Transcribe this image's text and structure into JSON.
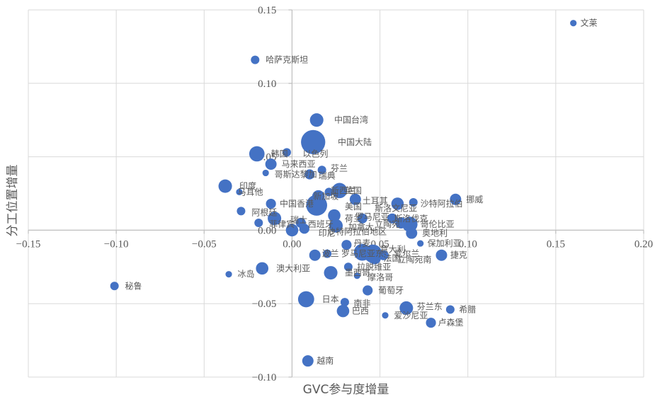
{
  "chart_data": {
    "type": "scatter",
    "xlabel": "GVC参与度增量",
    "ylabel": "分工位置增量",
    "xlim": [
      -0.15,
      0.2
    ],
    "ylim": [
      -0.1,
      0.15
    ],
    "xticks": [
      -0.15,
      -0.1,
      -0.05,
      0.0,
      0.05,
      0.1,
      0.15,
      0.2
    ],
    "yticks": [
      -0.1,
      -0.05,
      0.0,
      0.05,
      0.1,
      0.15
    ],
    "xtick_labels": [
      "−0.15",
      "−0.10",
      "−0.05",
      "0.00",
      "0.05",
      "0.10",
      "0.15",
      "0.20"
    ],
    "ytick_labels": [
      "−0.10",
      "−0.05",
      "0.00",
      "0.05",
      "0.10",
      "0.15"
    ],
    "grid": true,
    "points": [
      {
        "name": "文莱",
        "x": 0.16,
        "y": 0.141,
        "size": 1
      },
      {
        "name": "哈萨克斯坦",
        "x": -0.021,
        "y": 0.116,
        "size": 2
      },
      {
        "name": "中国台湾",
        "x": 0.014,
        "y": 0.075,
        "size": 6
      },
      {
        "name": "中国大陆",
        "x": 0.012,
        "y": 0.06,
        "size": 22
      },
      {
        "name": "韩国",
        "x": -0.02,
        "y": 0.052,
        "size": 8
      },
      {
        "name": "以色列",
        "x": -0.003,
        "y": 0.053,
        "size": 2
      },
      {
        "name": "马来西亚",
        "x": -0.012,
        "y": 0.045,
        "size": 4
      },
      {
        "name": "芬兰",
        "x": 0.017,
        "y": 0.041,
        "size": 2
      },
      {
        "name": "哥斯达黎加",
        "x": -0.015,
        "y": 0.039,
        "size": 1
      },
      {
        "name": "瑞典",
        "x": 0.01,
        "y": 0.038,
        "size": 3
      },
      {
        "name": "印度",
        "x": -0.038,
        "y": 0.03,
        "size": 6
      },
      {
        "name": "马耳他",
        "x": -0.03,
        "y": 0.026,
        "size": 1
      },
      {
        "name": "英国",
        "x": 0.027,
        "y": 0.027,
        "size": 8
      },
      {
        "name": "新加坡",
        "x": 0.021,
        "y": 0.026,
        "size": 2
      },
      {
        "name": "新西兰",
        "x": 0.015,
        "y": 0.023,
        "size": 5
      },
      {
        "name": "中国香港",
        "x": -0.012,
        "y": 0.018,
        "size": 3
      },
      {
        "name": "美国",
        "x": 0.014,
        "y": 0.017,
        "size": 16
      },
      {
        "name": "土耳其",
        "x": 0.036,
        "y": 0.021,
        "size": 4
      },
      {
        "name": "斯洛文尼亚",
        "x": 0.06,
        "y": 0.018,
        "size": 5
      },
      {
        "name": "沙特阿拉伯",
        "x": 0.069,
        "y": 0.019,
        "size": 2
      },
      {
        "name": "挪威",
        "x": 0.093,
        "y": 0.021,
        "size": 4
      },
      {
        "name": "阿根廷",
        "x": -0.029,
        "y": 0.013,
        "size": 2
      },
      {
        "name": "瑞士",
        "x": -0.01,
        "y": 0.008,
        "size": 6
      },
      {
        "name": "菲律宾",
        "x": -0.019,
        "y": 0.005,
        "size": 2
      },
      {
        "name": "西班牙",
        "x": 0.005,
        "y": 0.005,
        "size": 3
      },
      {
        "name": "荷兰",
        "x": 0.024,
        "y": 0.01,
        "size": 5
      },
      {
        "name": "加拿大",
        "x": 0.025,
        "y": 0.003,
        "size": 6
      },
      {
        "name": "斯洛伐克",
        "x": 0.057,
        "y": 0.008,
        "size": 3
      },
      {
        "name": "立陶宛",
        "x": 0.062,
        "y": 0.005,
        "size": 4
      },
      {
        "name": "哥伦比亚",
        "x": 0.067,
        "y": 0.004,
        "size": 8
      },
      {
        "name": "罗马尼亚",
        "x": 0.04,
        "y": 0.008,
        "size": 3
      },
      {
        "name": "奥地利",
        "x": 0.068,
        "y": -0.002,
        "size": 4
      },
      {
        "name": "印尼",
        "x": 0.0,
        "y": 0.0,
        "size": 5
      },
      {
        "name": "沙特阿拉伯地区",
        "x": 0.007,
        "y": 0.001,
        "size": 3
      },
      {
        "name": "丹麦",
        "x": 0.031,
        "y": -0.01,
        "size": 3
      },
      {
        "name": "保加利亚",
        "x": 0.073,
        "y": -0.009,
        "size": 1
      },
      {
        "name": "捷克",
        "x": 0.085,
        "y": -0.017,
        "size": 4
      },
      {
        "name": "波兰",
        "x": 0.013,
        "y": -0.017,
        "size": 4
      },
      {
        "name": "罗马尼亚东",
        "x": 0.02,
        "y": -0.016,
        "size": 2
      },
      {
        "name": "意大利",
        "x": 0.04,
        "y": -0.015,
        "size": 10
      },
      {
        "name": "爱尔兰",
        "x": 0.052,
        "y": -0.017,
        "size": 3
      },
      {
        "name": "法国",
        "x": 0.046,
        "y": -0.016,
        "size": 12
      },
      {
        "name": "立陶宛南",
        "x": 0.047,
        "y": -0.019,
        "size": 5
      },
      {
        "name": "澳大利亚",
        "x": -0.017,
        "y": -0.026,
        "size": 5
      },
      {
        "name": "冰岛",
        "x": -0.036,
        "y": -0.03,
        "size": 1
      },
      {
        "name": "拉脱维亚",
        "x": 0.032,
        "y": -0.025,
        "size": 2
      },
      {
        "name": "墨西哥",
        "x": 0.022,
        "y": -0.029,
        "size": 6
      },
      {
        "name": "摩洛哥",
        "x": 0.037,
        "y": -0.031,
        "size": 1
      },
      {
        "name": "秘鲁",
        "x": -0.101,
        "y": -0.038,
        "size": 2
      },
      {
        "name": "葡萄牙",
        "x": 0.043,
        "y": -0.041,
        "size": 3
      },
      {
        "name": "日本",
        "x": 0.008,
        "y": -0.047,
        "size": 9
      },
      {
        "name": "南非",
        "x": 0.03,
        "y": -0.049,
        "size": 2
      },
      {
        "name": "巴西",
        "x": 0.029,
        "y": -0.055,
        "size": 5
      },
      {
        "name": "芬兰东",
        "x": 0.065,
        "y": -0.053,
        "size": 6
      },
      {
        "name": "希腊",
        "x": 0.09,
        "y": -0.054,
        "size": 2
      },
      {
        "name": "爱沙尼亚",
        "x": 0.053,
        "y": -0.058,
        "size": 1
      },
      {
        "name": "卢森堡",
        "x": 0.079,
        "y": -0.063,
        "size": 3
      },
      {
        "name": "越南",
        "x": 0.009,
        "y": -0.089,
        "size": 4
      }
    ],
    "labels": [
      {
        "text": "文莱",
        "x": 0.164,
        "y": 0.141
      },
      {
        "text": "哈萨克斯坦",
        "x": -0.015,
        "y": 0.116
      },
      {
        "text": "中国台湾",
        "x": 0.024,
        "y": 0.075
      },
      {
        "text": "中国大陆",
        "x": 0.026,
        "y": 0.06
      },
      {
        "text": "韩国",
        "x": -0.012,
        "y": 0.052
      },
      {
        "text": "以色列",
        "x": 0.006,
        "y": 0.052
      },
      {
        "text": "马来西亚",
        "x": -0.006,
        "y": 0.045
      },
      {
        "text": "芬兰",
        "x": 0.022,
        "y": 0.042
      },
      {
        "text": "哥斯达黎加",
        "x": -0.01,
        "y": 0.038
      },
      {
        "text": "瑞典",
        "x": 0.015,
        "y": 0.037
      },
      {
        "text": "印度",
        "x": -0.03,
        "y": 0.03
      },
      {
        "text": "马耳他",
        "x": -0.031,
        "y": 0.026
      },
      {
        "text": "英国",
        "x": 0.03,
        "y": 0.027
      },
      {
        "text": "新西兰",
        "x": 0.022,
        "y": 0.027
      },
      {
        "text": "新加坡",
        "x": 0.012,
        "y": 0.023
      },
      {
        "text": "中国香港",
        "x": -0.007,
        "y": 0.018
      },
      {
        "text": "美国",
        "x": 0.03,
        "y": 0.016
      },
      {
        "text": "土耳其",
        "x": 0.04,
        "y": 0.02
      },
      {
        "text": "斯洛文尼亚",
        "x": 0.047,
        "y": 0.015
      },
      {
        "text": "沙特阿拉伯",
        "x": 0.073,
        "y": 0.018
      },
      {
        "text": "挪威",
        "x": 0.099,
        "y": 0.021
      },
      {
        "text": "阿根廷",
        "x": -0.023,
        "y": 0.012
      },
      {
        "text": "瑞士",
        "x": -0.001,
        "y": 0.007
      },
      {
        "text": "菲律宾",
        "x": -0.013,
        "y": 0.004
      },
      {
        "text": "西班牙",
        "x": 0.009,
        "y": 0.004
      },
      {
        "text": "荷兰",
        "x": 0.03,
        "y": 0.008
      },
      {
        "text": "加拿大",
        "x": 0.032,
        "y": 0.002
      },
      {
        "text": "斯洛伐克",
        "x": 0.058,
        "y": 0.008
      },
      {
        "text": "立陶宛",
        "x": 0.047,
        "y": 0.004
      },
      {
        "text": "哥伦比亚",
        "x": 0.073,
        "y": 0.004
      },
      {
        "text": "罗马尼亚",
        "x": 0.036,
        "y": 0.009
      },
      {
        "text": "奥地利",
        "x": 0.074,
        "y": -0.002
      },
      {
        "text": "印尼",
        "x": 0.015,
        "y": -0.002
      },
      {
        "text": "沙特阿拉伯地区",
        "x": 0.02,
        "y": -0.001
      },
      {
        "text": "丹麦",
        "x": 0.035,
        "y": -0.009
      },
      {
        "text": "保加利亚",
        "x": 0.077,
        "y": -0.009
      },
      {
        "text": "捷克",
        "x": 0.09,
        "y": -0.017
      },
      {
        "text": "波兰",
        "x": 0.017,
        "y": -0.016
      },
      {
        "text": "罗马尼亚东",
        "x": 0.028,
        "y": -0.016
      },
      {
        "text": "意大利",
        "x": 0.05,
        "y": -0.013
      },
      {
        "text": "爱尔兰",
        "x": 0.058,
        "y": -0.016
      },
      {
        "text": "法国",
        "x": 0.052,
        "y": -0.019
      },
      {
        "text": "立陶宛南",
        "x": 0.06,
        "y": -0.02
      },
      {
        "text": "澳大利亚",
        "x": -0.009,
        "y": -0.026
      },
      {
        "text": "冰岛",
        "x": -0.031,
        "y": -0.03
      },
      {
        "text": "拉脱维亚",
        "x": 0.037,
        "y": -0.025
      },
      {
        "text": "墨西哥",
        "x": 0.03,
        "y": -0.029
      },
      {
        "text": "摩洛哥",
        "x": 0.043,
        "y": -0.032
      },
      {
        "text": "秘鲁",
        "x": -0.095,
        "y": -0.038
      },
      {
        "text": "葡萄牙",
        "x": 0.049,
        "y": -0.041
      },
      {
        "text": "日本",
        "x": 0.017,
        "y": -0.047
      },
      {
        "text": "南非",
        "x": 0.035,
        "y": -0.05
      },
      {
        "text": "巴西",
        "x": 0.034,
        "y": -0.055
      },
      {
        "text": "芬兰东",
        "x": 0.071,
        "y": -0.052
      },
      {
        "text": "希腊",
        "x": 0.095,
        "y": -0.054
      },
      {
        "text": "爱沙尼亚",
        "x": 0.058,
        "y": -0.058
      },
      {
        "text": "卢森堡",
        "x": 0.083,
        "y": -0.063
      },
      {
        "text": "越南",
        "x": 0.014,
        "y": -0.089
      }
    ]
  }
}
